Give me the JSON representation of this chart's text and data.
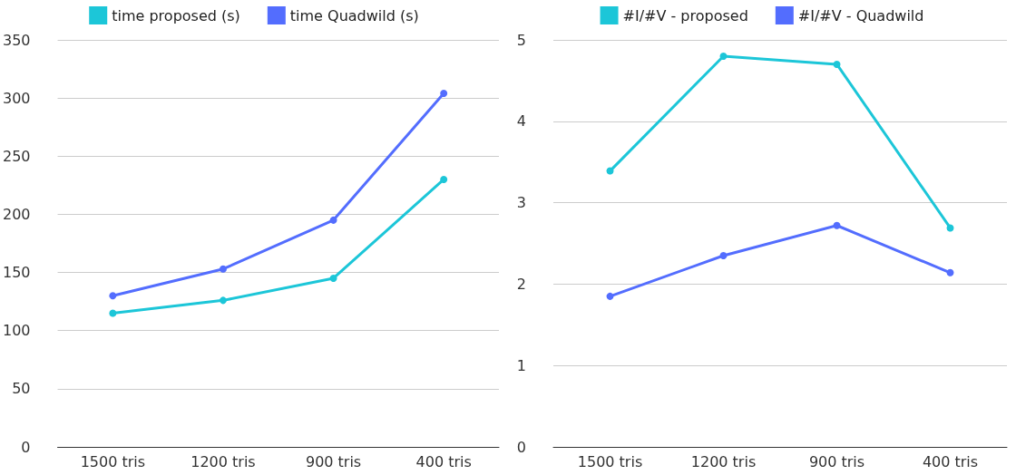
{
  "chart_data": [
    {
      "type": "line",
      "categories": [
        "1500 tris",
        "1200 tris",
        "900 tris",
        "400 tris"
      ],
      "series": [
        {
          "name": "time proposed (s)",
          "color": "#1cc6d8",
          "values": [
            115,
            126,
            145,
            230
          ]
        },
        {
          "name": "time Quadwild (s)",
          "color": "#536dfe",
          "values": [
            130,
            153,
            195,
            304
          ]
        }
      ],
      "ylim": [
        0,
        350
      ],
      "yticks": [
        0,
        50,
        100,
        150,
        200,
        250,
        300,
        350
      ],
      "grid": "y",
      "legend": "top",
      "marker": "circle",
      "line_style": "solid"
    },
    {
      "type": "line",
      "categories": [
        "1500 tris",
        "1200 tris",
        "900 tris",
        "400 tris"
      ],
      "series": [
        {
          "name": "#I/#V - proposed",
          "color": "#1cc6d8",
          "values": [
            3.39,
            4.8,
            4.7,
            2.69
          ]
        },
        {
          "name": "#I/#V - Quadwild",
          "color": "#536dfe",
          "values": [
            1.85,
            2.35,
            2.72,
            2.14
          ]
        }
      ],
      "ylim": [
        0,
        5
      ],
      "yticks": [
        0,
        1,
        2,
        3,
        4,
        5
      ],
      "grid": "y",
      "legend": "top",
      "marker": "circle",
      "line_style": "solid"
    }
  ]
}
